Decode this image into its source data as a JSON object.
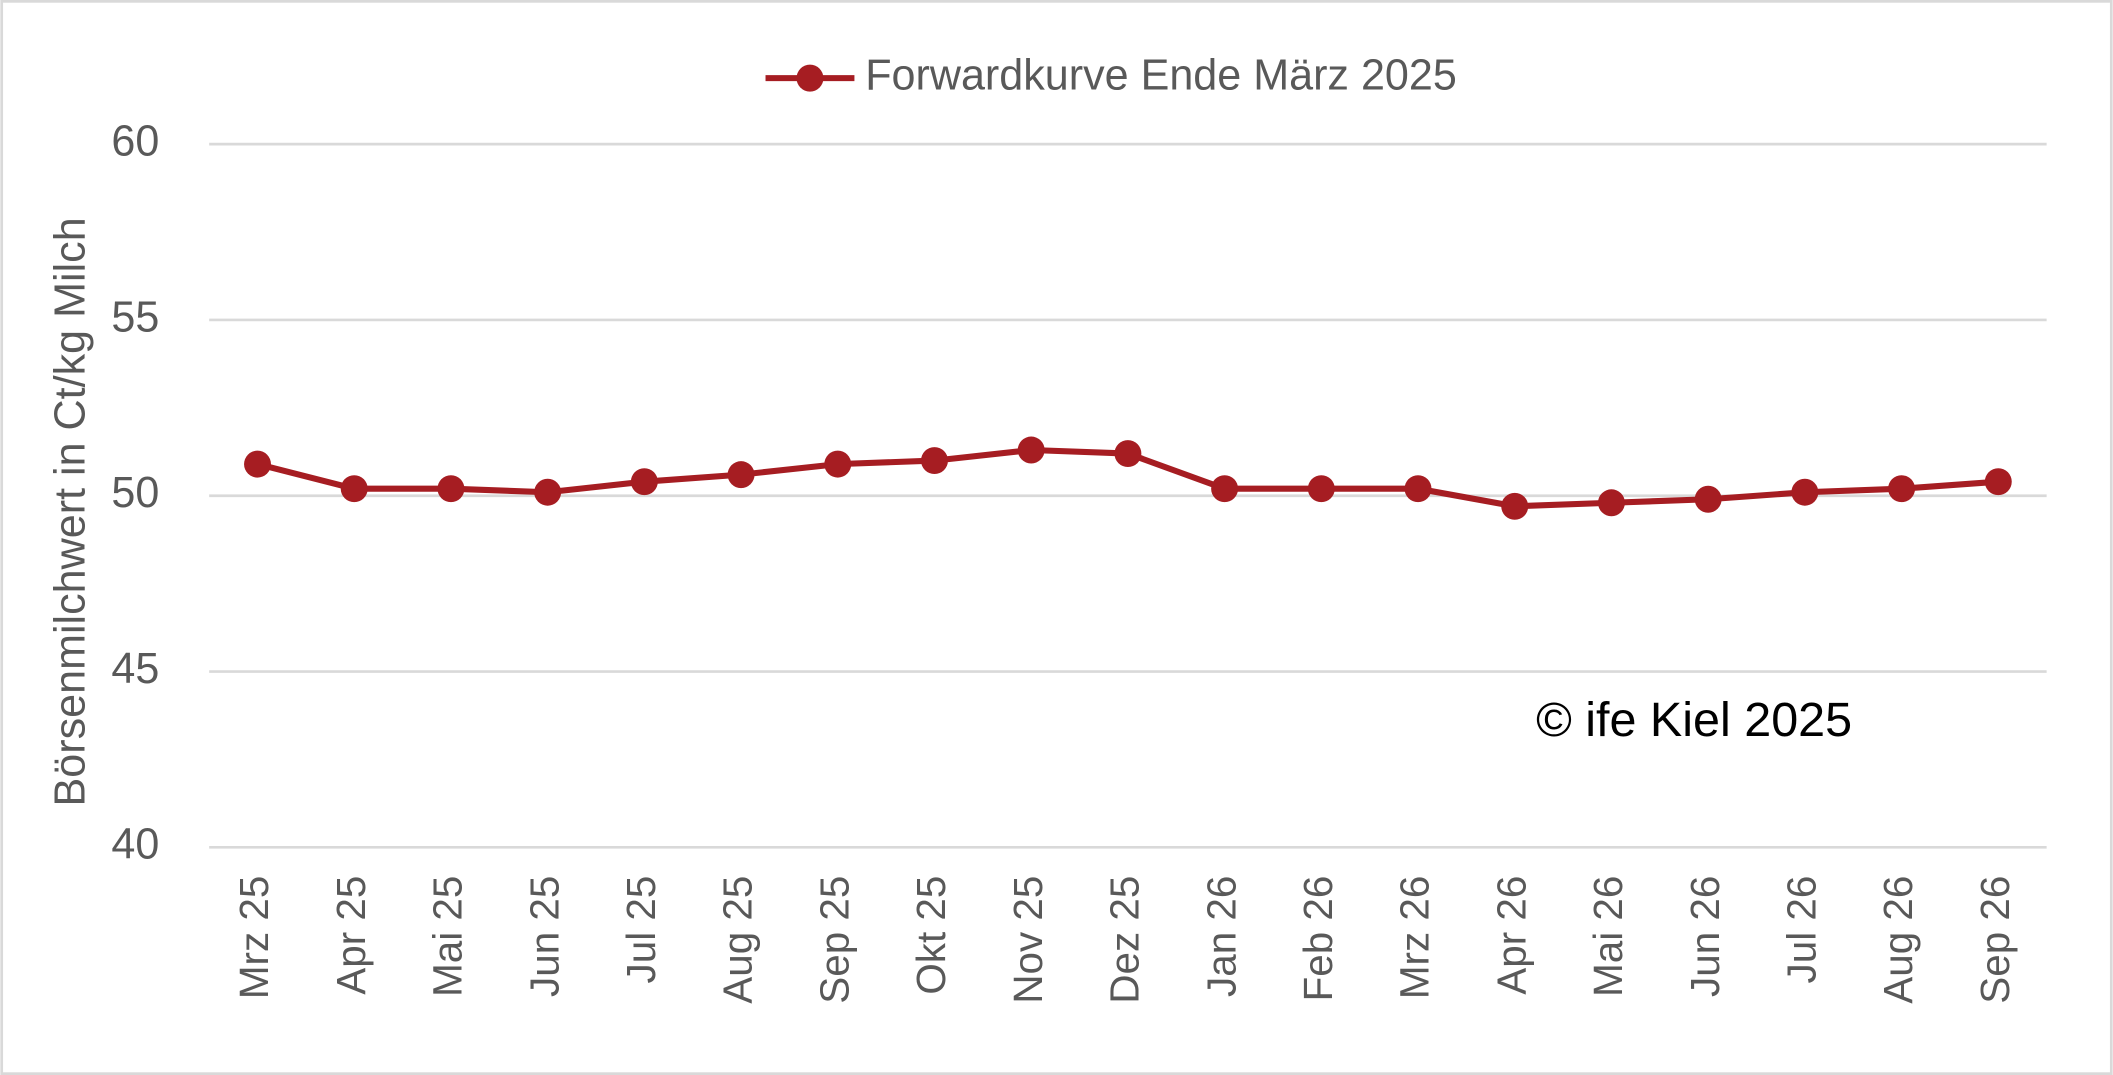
{
  "chart_data": {
    "type": "line",
    "y_label": "Börsenmilchwert in Ct/kg Milch",
    "annotation": "© ife Kiel 2025",
    "categories": [
      "Mrz 25",
      "Apr 25",
      "Mai 25",
      "Jun 25",
      "Jul 25",
      "Aug 25",
      "Sep 25",
      "Okt 25",
      "Nov 25",
      "Dez 25",
      "Jan 26",
      "Feb 26",
      "Mrz 26",
      "Apr 26",
      "Mai 26",
      "Jun 26",
      "Jul 26",
      "Aug 26",
      "Sep 26"
    ],
    "series": [
      {
        "name": "Forwardkurve Ende März 2025",
        "color": "#a61d22",
        "values": [
          50.9,
          50.2,
          50.2,
          50.1,
          50.4,
          50.6,
          50.9,
          51.0,
          51.3,
          51.2,
          50.2,
          50.2,
          50.2,
          49.7,
          49.8,
          49.9,
          50.1,
          50.2,
          50.4
        ]
      }
    ],
    "ylim": [
      40,
      60
    ],
    "yticks": [
      40,
      45,
      50,
      55,
      60
    ],
    "grid": true,
    "legend": "top"
  }
}
